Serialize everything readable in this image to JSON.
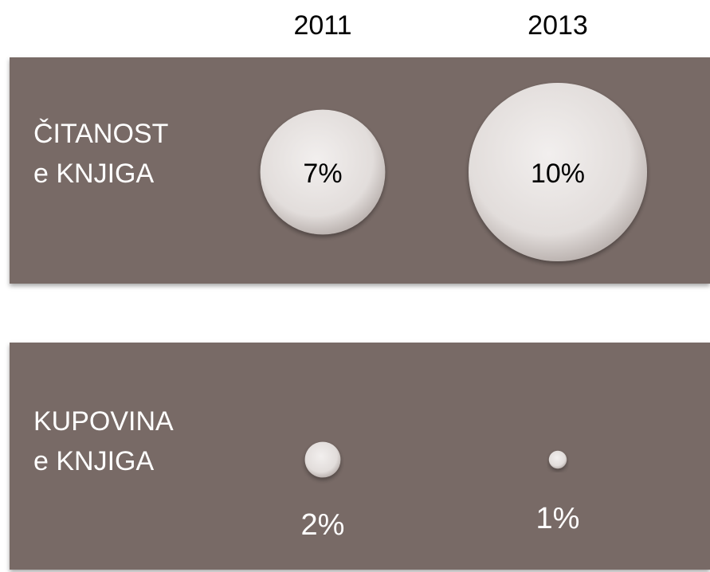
{
  "chart_data": {
    "type": "bubble",
    "categories": [
      "2011",
      "2013"
    ],
    "series": [
      {
        "name": "ČITANOST e KNJIGA",
        "values": [
          7,
          10
        ],
        "value_labels": [
          "7%",
          "10%"
        ]
      },
      {
        "name": "KUPOVINA e KNJIGA",
        "values": [
          2,
          1
        ],
        "value_labels": [
          "2%",
          "1%"
        ]
      }
    ],
    "color": "#e4dfdd",
    "panel_color": "#786a66"
  }
}
